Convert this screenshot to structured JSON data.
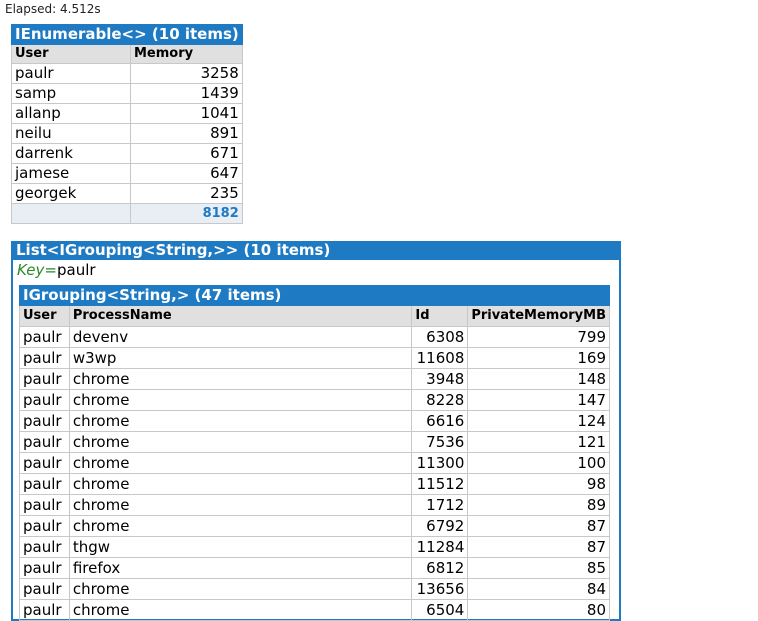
{
  "elapsed": "Elapsed: 4.512s",
  "table1": {
    "caption": "IEnumerable<> (10 items)",
    "headers": [
      "User",
      "Memory"
    ],
    "rows": [
      [
        "paulr",
        "3258"
      ],
      [
        "samp",
        "1439"
      ],
      [
        "allanp",
        "1041"
      ],
      [
        "neilu",
        "891"
      ],
      [
        "darrenk",
        "671"
      ],
      [
        "jamese",
        "647"
      ],
      [
        "georgek",
        "235"
      ]
    ],
    "total": "8182"
  },
  "list": {
    "caption": "List<IGrouping<String,>> (10 items)",
    "key_label": "Key=",
    "key_value": "paulr",
    "group_caption": "IGrouping<String,> (47 items)",
    "headers": [
      "User",
      "ProcessName",
      "Id",
      "PrivateMemoryMB"
    ],
    "rows": [
      [
        "paulr",
        "devenv",
        "6308",
        "799"
      ],
      [
        "paulr",
        "w3wp",
        "11608",
        "169"
      ],
      [
        "paulr",
        "chrome",
        "3948",
        "148"
      ],
      [
        "paulr",
        "chrome",
        "8228",
        "147"
      ],
      [
        "paulr",
        "chrome",
        "6616",
        "124"
      ],
      [
        "paulr",
        "chrome",
        "7536",
        "121"
      ],
      [
        "paulr",
        "chrome",
        "11300",
        "100"
      ],
      [
        "paulr",
        "chrome",
        "11512",
        "98"
      ],
      [
        "paulr",
        "chrome",
        "1712",
        "89"
      ],
      [
        "paulr",
        "chrome",
        "6792",
        "87"
      ],
      [
        "paulr",
        "thgw",
        "11284",
        "87"
      ],
      [
        "paulr",
        "firefox",
        "6812",
        "85"
      ],
      [
        "paulr",
        "chrome",
        "13656",
        "84"
      ],
      [
        "paulr",
        "chrome",
        "6504",
        "80"
      ]
    ]
  }
}
